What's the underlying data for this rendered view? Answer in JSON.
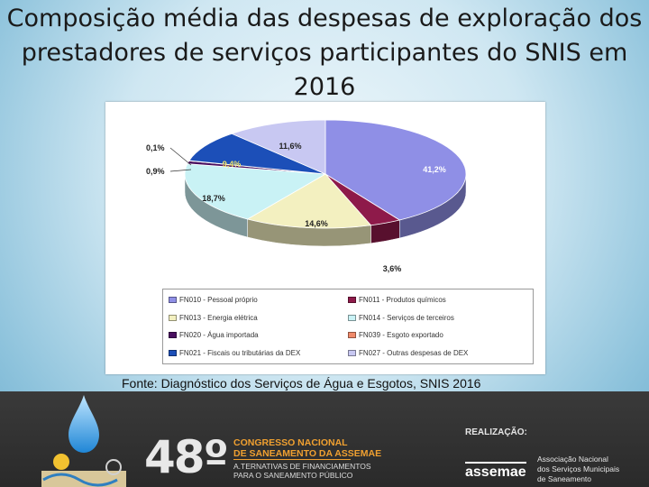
{
  "title": "Composição média das despesas de exploração dos prestadores de serviços participantes do SNIS em 2016",
  "source": "Fonte: Diagnóstico dos Serviços de Água e Esgotos, SNIS 2016",
  "chart_data": {
    "type": "pie",
    "title": "",
    "legend_position": "bottom",
    "slices": [
      {
        "label": "FN010 - Pessoal próprio",
        "value": 41.2,
        "display": "41,2%",
        "color": "#8f8fe6"
      },
      {
        "label": "FN011 - Produtos químicos",
        "value": 3.6,
        "display": "3,6%",
        "color": "#8e1a4a"
      },
      {
        "label": "FN013 - Energia elétrica",
        "value": 14.6,
        "display": "14,6%",
        "color": "#f3f0c0"
      },
      {
        "label": "FN014 - Serviços de terceiros",
        "value": 18.7,
        "display": "18,7%",
        "color": "#c9f2f5"
      },
      {
        "label": "FN020 - Água importada",
        "value": 0.9,
        "display": "0,9%",
        "color": "#4a1060"
      },
      {
        "label": "FN039 - Esgoto exportado",
        "value": 0.1,
        "display": "0,1%",
        "color": "#f08a6a"
      },
      {
        "label": "FN021 - Fiscais ou tributárias da DEX",
        "value": 9.4,
        "display": "9,4%",
        "color": "#1c4fb8"
      },
      {
        "label": "FN027 - Outras despesas de DEX",
        "value": 11.6,
        "display": "11,6%",
        "color": "#c8c8f2"
      }
    ]
  },
  "footer": {
    "congress_number": "48º",
    "congress_line1": "CONGRESSO NACIONAL",
    "congress_line2": "DE SANEAMENTO DA ASSEMAE",
    "congress_line3": "A.TERNATIVAS DE FINANCIAMENTOS",
    "congress_line4": "PARA O SANEAMENTO PÚBLICO",
    "realizacao": "REALIZAÇÃO:",
    "org_short": "assemae",
    "org_line1": "Associação Nacional",
    "org_line2": "dos Serviços Municipais",
    "org_line3": "de Saneamento"
  }
}
